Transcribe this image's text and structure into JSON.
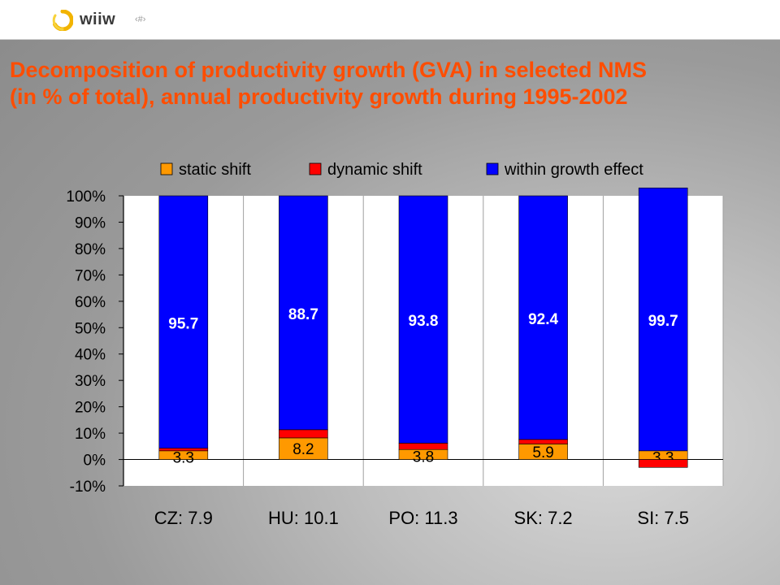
{
  "header": {
    "logo_text": "wiiw",
    "page_number": "‹#›",
    "title_line1": "Decomposition of productivity growth (GVA) in selected NMS",
    "title_line2": "(in % of total), annual productivity growth during 1995-2002"
  },
  "colors": {
    "title": "#ff4d00",
    "static_shift": "#ff9900",
    "dynamic_shift": "#ff0000",
    "within_growth": "#0000ff"
  },
  "chart_data": {
    "type": "bar",
    "stacked": true,
    "categories": [
      "CZ: 7.9",
      "HU: 10.1",
      "PO: 11.3",
      "SK: 7.2",
      "SI: 7.5"
    ],
    "series": [
      {
        "name": "static shift",
        "color": "#ff9900",
        "values": [
          3.3,
          8.2,
          3.8,
          5.9,
          3.3
        ],
        "labels": [
          "3.3",
          "8.2",
          "3.8",
          "5.9",
          "3.3"
        ]
      },
      {
        "name": "dynamic shift",
        "color": "#ff0000",
        "values": [
          1.0,
          3.1,
          2.4,
          1.7,
          -3.0
        ],
        "labels": null
      },
      {
        "name": "within growth effect",
        "color": "#0000ff",
        "values": [
          95.7,
          88.7,
          93.8,
          92.4,
          99.7
        ],
        "labels": [
          "95.7",
          "88.7",
          "93.8",
          "92.4",
          "99.7"
        ]
      }
    ],
    "yticks": [
      "100%",
      "90%",
      "80%",
      "70%",
      "60%",
      "50%",
      "40%",
      "30%",
      "20%",
      "10%",
      "0%",
      "-10%"
    ],
    "ylim": [
      -10,
      100
    ],
    "grid": "vertical lines between categories",
    "legend": "top"
  }
}
